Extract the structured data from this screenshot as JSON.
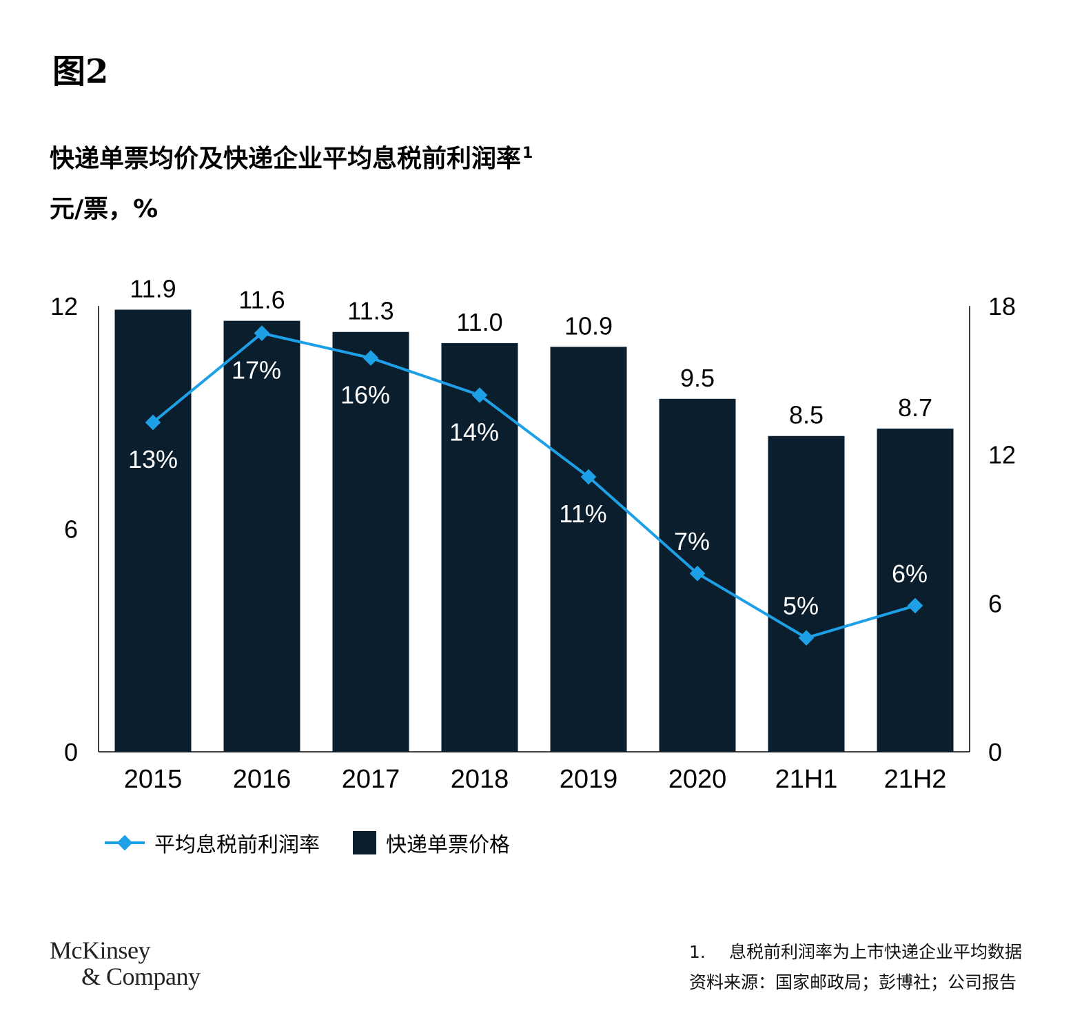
{
  "figure_label": "图2",
  "title": "快递单票均价及快递企业平均息税前利润率",
  "title_footnote_mark": "1",
  "units": "元/票，%",
  "colors": {
    "bar": "#0a1e2e",
    "line": "#1ea0e6",
    "text_on_bar": "#ffffff"
  },
  "chart_data": {
    "type": "bar",
    "categories": [
      "2015",
      "2016",
      "2017",
      "2018",
      "2019",
      "2020",
      "21H1",
      "21H2"
    ],
    "series": [
      {
        "name": "快递单票价格",
        "type": "bar",
        "axis": "left",
        "values": [
          11.9,
          11.6,
          11.3,
          11.0,
          10.9,
          9.5,
          8.5,
          8.7
        ],
        "labels": [
          "11.9",
          "11.6",
          "11.3",
          "11.0",
          "10.9",
          "9.5",
          "8.5",
          "8.7"
        ]
      },
      {
        "name": "平均息税前利润率",
        "type": "line",
        "axis": "right",
        "values": [
          13,
          17,
          16,
          14,
          11,
          7,
          5,
          6
        ],
        "plotted_values": [
          13.3,
          16.9,
          15.9,
          14.4,
          11.1,
          7.2,
          4.6,
          5.9
        ],
        "labels": [
          "13%",
          "17%",
          "16%",
          "14%",
          "11%",
          "7%",
          "5%",
          "6%"
        ]
      }
    ],
    "left_axis": {
      "ticks": [
        "0",
        "6",
        "12"
      ],
      "ylim": [
        0,
        12
      ]
    },
    "right_axis": {
      "ticks": [
        "0",
        "6",
        "12",
        "18"
      ],
      "ylim": [
        0,
        18
      ]
    },
    "legend_position": "bottom-left"
  },
  "legend": {
    "line_label": "平均息税前利润率",
    "bar_label": "快递单票价格"
  },
  "logo": {
    "line1": "McKinsey",
    "line2": "& Company"
  },
  "footnotes": {
    "note1_number": "1.",
    "note1_text": "息税前利润率为上市快递企业平均数据",
    "source": "资料来源：国家邮政局；彭博社；公司报告"
  }
}
